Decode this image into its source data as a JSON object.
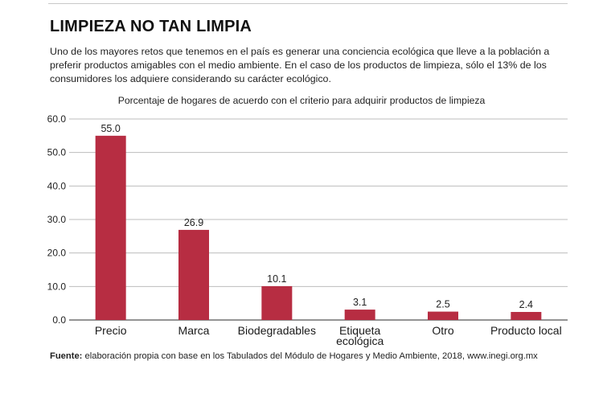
{
  "title": "LIMPIEZA NO TAN LIMPIA",
  "intro": "Uno de los mayores retos que tenemos en el país es generar una conciencia ecológica que lleve a la población a preferir productos amigables con el medio ambiente. En el caso de los productos de limpieza, sólo el 13% de los consumidores los adquiere considerando su carácter ecológico.",
  "source_label": "Fuente:",
  "source_text": " elaboración propia con base en los Tabulados del Módulo de Hogares y Medio Ambiente, 2018, www.inegi.org.mx",
  "colors": {
    "bar": "#b72d42",
    "grid": "#bdbdbd"
  },
  "chart_data": {
    "type": "bar",
    "title": "Porcentaje de hogares de acuerdo con el criterio para adquirir productos de limpieza",
    "categories": [
      "Precio",
      "Marca",
      "Biodegradables",
      "Etiqueta ecológica",
      "Otro",
      "Producto local"
    ],
    "values": [
      55.0,
      26.9,
      10.1,
      3.1,
      2.5,
      2.4
    ],
    "value_labels": [
      "55.0",
      "26.9",
      "10.1",
      "3.1",
      "2.5",
      "2.4"
    ],
    "yticks": [
      "0.0",
      "10.0",
      "20.0",
      "30.0",
      "40.0",
      "50.0",
      "60.0"
    ],
    "ylim": [
      0,
      60
    ],
    "grid": true,
    "legend": "none"
  }
}
